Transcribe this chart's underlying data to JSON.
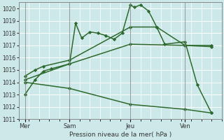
{
  "xlabel": "Pression niveau de la mer( hPa )",
  "bg_color": "#cce8e8",
  "grid_color": "#ffffff",
  "line_color": "#2d6a2d",
  "ylim": [
    1011,
    1020.5
  ],
  "yticks": [
    1011,
    1012,
    1013,
    1014,
    1015,
    1016,
    1017,
    1018,
    1019,
    1020
  ],
  "xlim": [
    0,
    10
  ],
  "xtick_labels": [
    "Mer",
    "Sam",
    "Jeu",
    "Ven"
  ],
  "xtick_positions": [
    0.3,
    2.5,
    5.5,
    8.2
  ],
  "vlines": [
    0.3,
    2.5,
    5.5,
    8.2
  ],
  "series": [
    {
      "x": [
        0.3,
        0.8,
        1.2,
        1.6,
        2.5,
        2.8,
        3.1,
        3.5,
        3.9,
        4.3,
        4.7,
        5.1,
        5.5,
        5.7,
        6.0,
        6.4,
        6.8,
        7.2,
        8.2,
        8.8,
        9.5
      ],
      "y": [
        1013.0,
        1014.2,
        1014.9,
        1015.1,
        1015.5,
        1018.8,
        1017.6,
        1018.1,
        1018.0,
        1017.8,
        1017.5,
        1018.0,
        1020.3,
        1020.1,
        1020.3,
        1019.8,
        1018.5,
        1017.1,
        1017.3,
        1013.8,
        1011.5
      ],
      "lw": 1.1,
      "marker": "D",
      "ms": 2.2
    },
    {
      "x": [
        0.3,
        0.8,
        1.2,
        2.5,
        5.5,
        6.8,
        8.2,
        9.5
      ],
      "y": [
        1014.5,
        1015.0,
        1015.3,
        1015.8,
        1018.5,
        1018.5,
        1017.0,
        1017.0
      ],
      "lw": 1.1,
      "marker": "D",
      "ms": 2.2
    },
    {
      "x": [
        0.3,
        2.5,
        5.5,
        8.2,
        9.5
      ],
      "y": [
        1014.2,
        1015.5,
        1017.1,
        1017.0,
        1016.9
      ],
      "lw": 1.1,
      "marker": "D",
      "ms": 2.2
    },
    {
      "x": [
        0.3,
        2.5,
        5.5,
        8.2,
        9.5
      ],
      "y": [
        1014.0,
        1013.5,
        1012.2,
        1011.8,
        1011.5
      ],
      "lw": 1.1,
      "marker": "D",
      "ms": 2.2
    }
  ]
}
